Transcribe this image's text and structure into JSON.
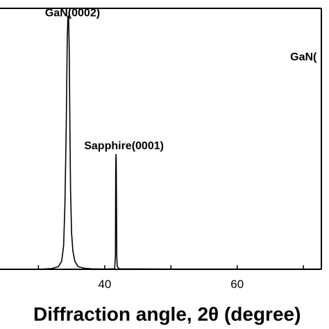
{
  "chart_data": {
    "type": "line",
    "xlabel": "Diffraction angle, 2θ (degree)",
    "ylabel": "",
    "xlim": [
      24.2,
      72.7
    ],
    "ylim": [
      0,
      1.0
    ],
    "grid": false,
    "legend": "none",
    "line_color": "#000000",
    "x_ticks": [
      30,
      40,
      50,
      60,
      70
    ],
    "x_tick_labels": [
      {
        "x": 40,
        "label": "40"
      },
      {
        "x": 60,
        "label": "60"
      }
    ],
    "annotations": [
      {
        "text": "GaN(0002)",
        "x": 31.0,
        "y": 0.97
      },
      {
        "text": "Sapphire(0001)",
        "x": 36.9,
        "y": 0.46
      },
      {
        "text": "GaN(",
        "x": 68.0,
        "y": 0.8
      }
    ],
    "series": [
      {
        "x": [
          24.2,
          30.0,
          32.0,
          33.0,
          33.5,
          33.8,
          34.0,
          34.2,
          34.35,
          34.45,
          34.55,
          34.65,
          34.75,
          34.85,
          35.0,
          35.2,
          35.5,
          36.0,
          37.0,
          38.0,
          40.0,
          41.5,
          41.62,
          41.66,
          41.7,
          41.74,
          41.78,
          41.82,
          41.9,
          42.2,
          50.0,
          60.0,
          70.0,
          72.7
        ],
        "y": [
          0.0,
          0.0,
          0.003,
          0.01,
          0.03,
          0.09,
          0.25,
          0.55,
          0.88,
          0.97,
          0.97,
          0.84,
          0.55,
          0.3,
          0.14,
          0.07,
          0.03,
          0.01,
          0.004,
          0.002,
          0.001,
          0.002,
          0.05,
          0.37,
          0.44,
          0.42,
          0.25,
          0.05,
          0.01,
          0.002,
          0.001,
          0.001,
          0.001,
          0.001
        ]
      }
    ]
  }
}
